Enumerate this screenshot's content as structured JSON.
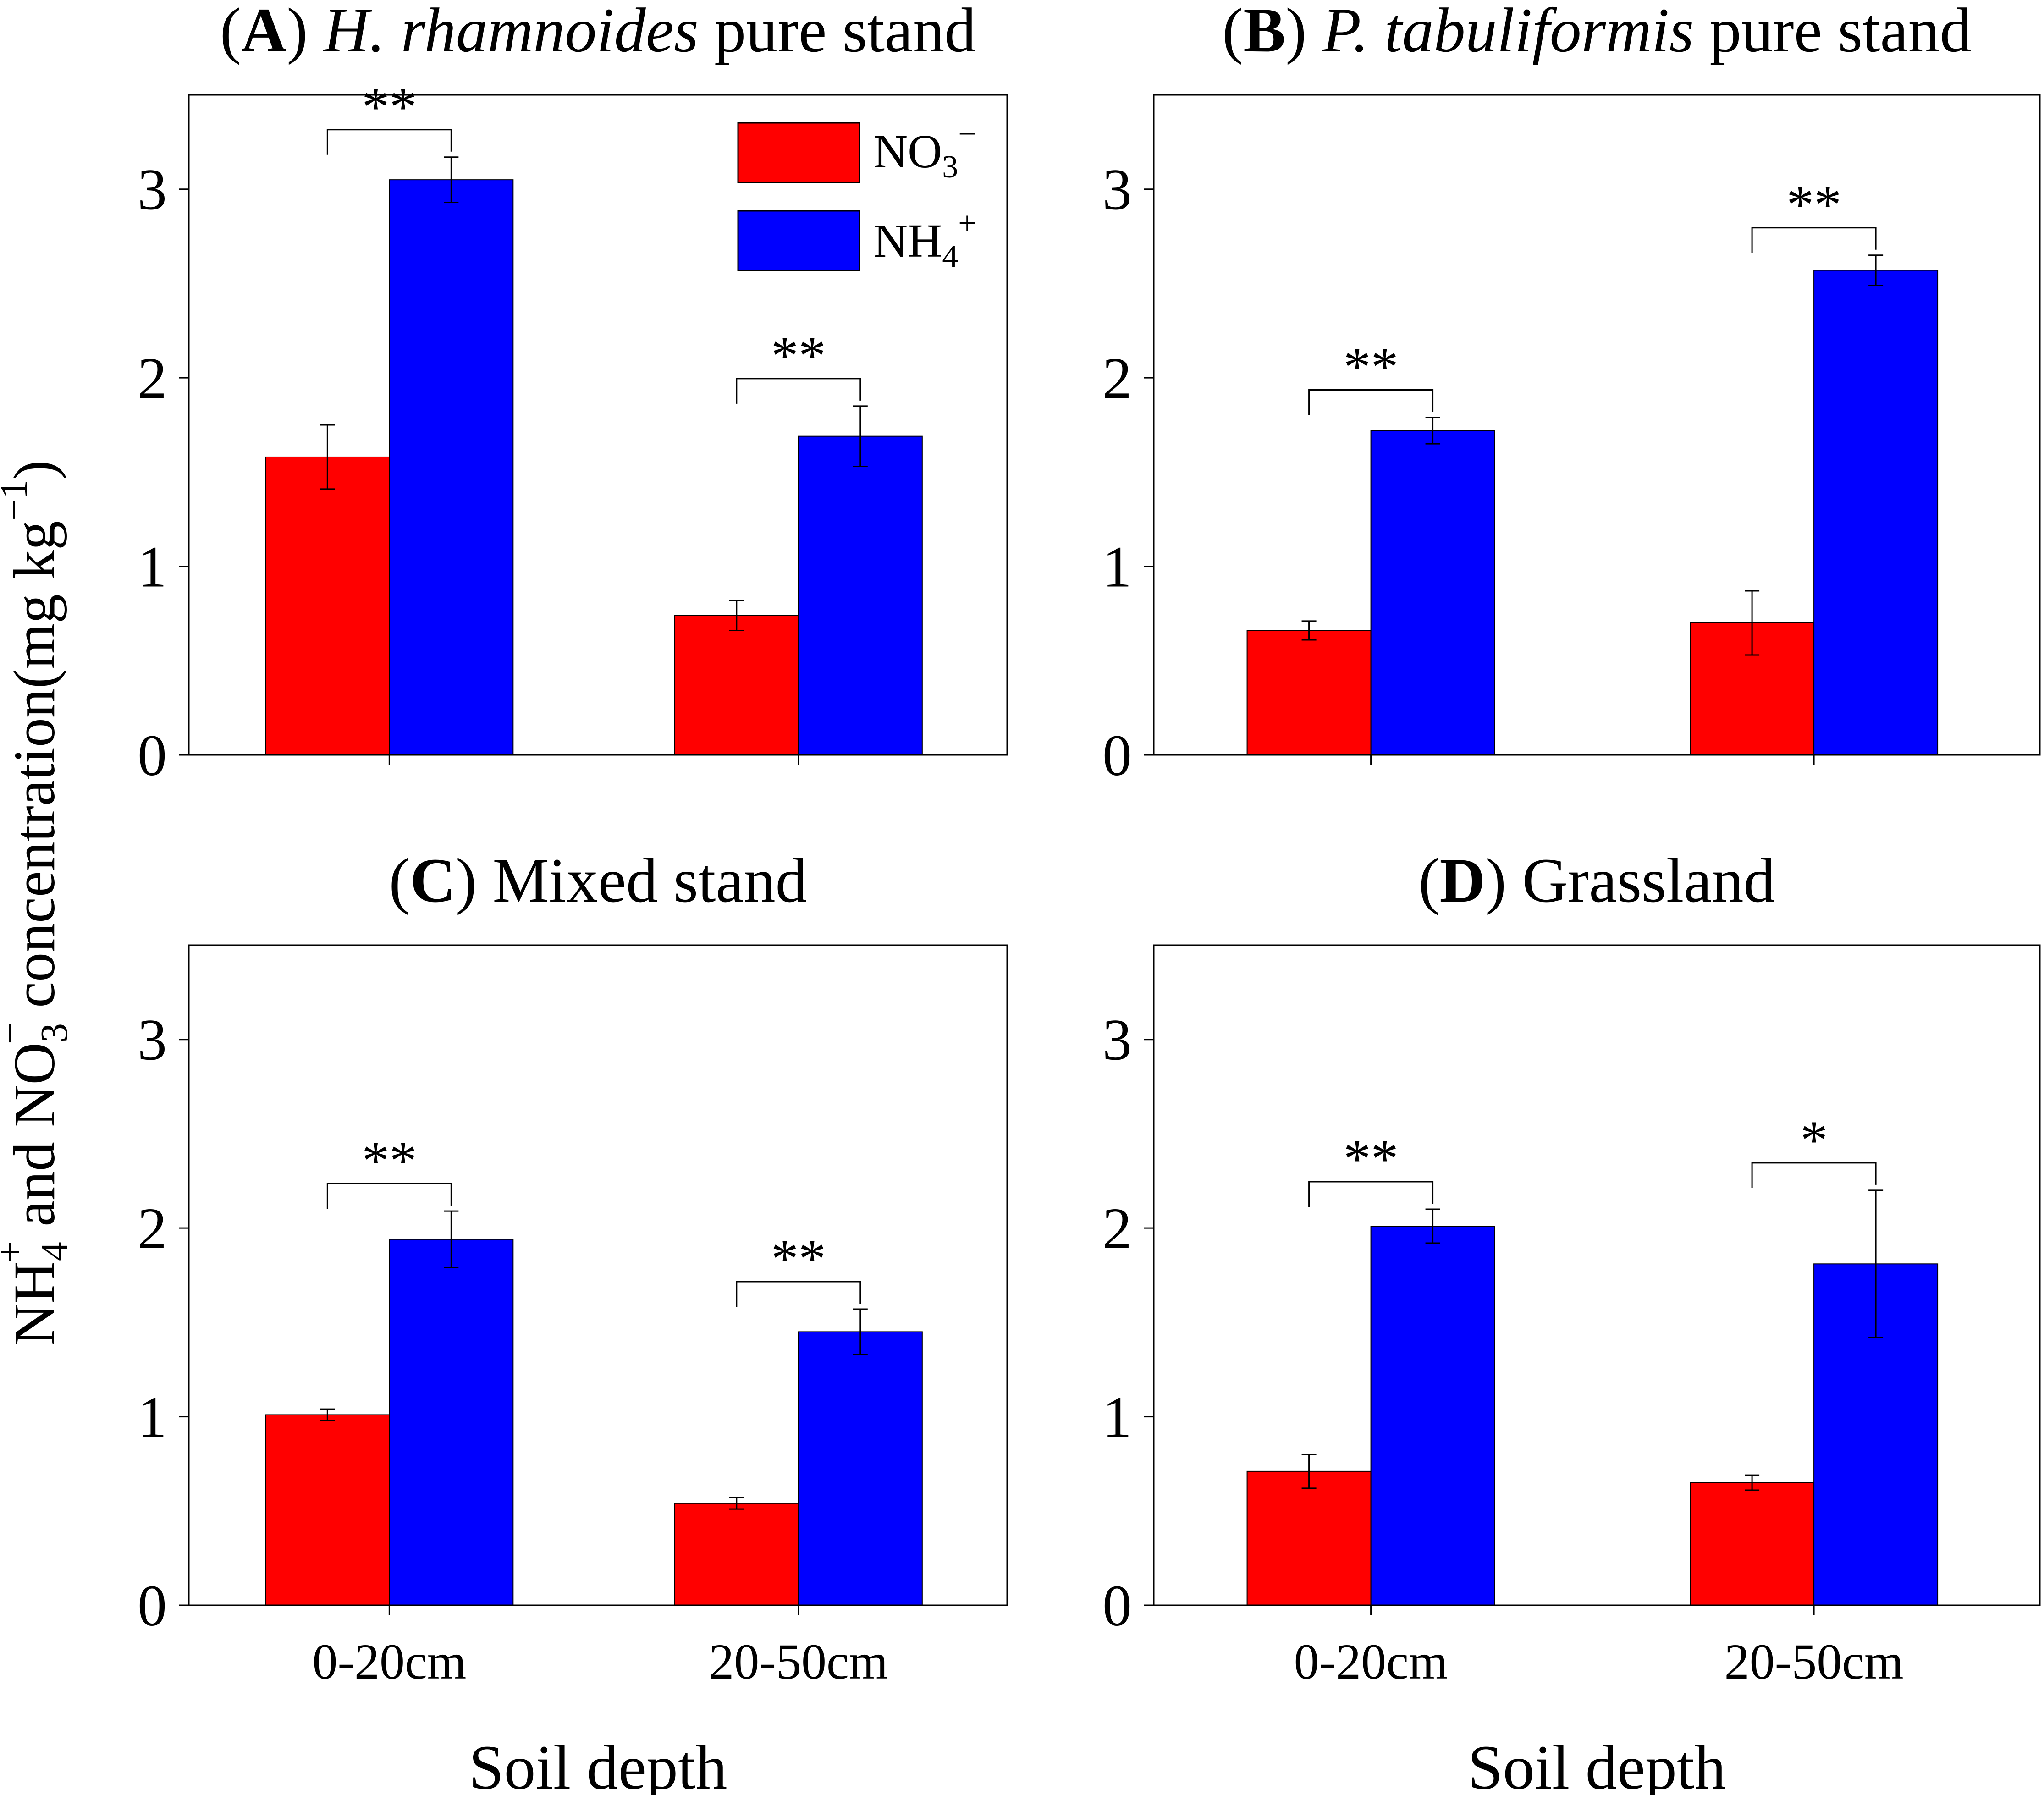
{
  "figure": {
    "y_axis_label": {
      "main1": "NH",
      "sub1": "4",
      "sup1": "+",
      "main2": " and NO",
      "sub2": "3",
      "sup2": "−",
      "main3": " concentration(mg kg",
      "sup3": "−1",
      "main4": ")"
    },
    "legend": {
      "no3": {
        "base": "NO",
        "sub": "3",
        "sup": "−",
        "color": "#ff0000"
      },
      "nh4": {
        "base": "NH",
        "sub": "4",
        "sup": "+",
        "color": "#0000ff"
      }
    },
    "x_axis_label": "Soil depth"
  },
  "chart_data": [
    {
      "type": "bar",
      "panel": "A",
      "title_prefix": "(",
      "title_letter": "A",
      "title_close": ") ",
      "title_italic": "H. rhamnoides",
      "title_rest": " pure stand",
      "categories": [
        "0-20cm",
        "20-50cm"
      ],
      "ylim": [
        0,
        3.5
      ],
      "yticks": [
        "0",
        "1",
        "2",
        "3"
      ],
      "xlabel": "",
      "series": [
        {
          "name": "NO3-",
          "color": "#ff0000",
          "values": [
            1.58,
            0.74
          ],
          "errors": [
            0.17,
            0.08
          ]
        },
        {
          "name": "NH4+",
          "color": "#0000ff",
          "values": [
            3.05,
            1.69
          ],
          "errors": [
            0.12,
            0.16
          ]
        }
      ],
      "significance": [
        "**",
        "**"
      ]
    },
    {
      "type": "bar",
      "panel": "B",
      "title_prefix": "(",
      "title_letter": "B",
      "title_close": ") ",
      "title_italic": "P. tabuliformis",
      "title_rest": " pure stand",
      "categories": [
        "0-20cm",
        "20-50cm"
      ],
      "ylim": [
        0,
        3.5
      ],
      "yticks": [
        "0",
        "1",
        "2",
        "3"
      ],
      "xlabel": "",
      "series": [
        {
          "name": "NO3-",
          "color": "#ff0000",
          "values": [
            0.66,
            0.7
          ],
          "errors": [
            0.05,
            0.17
          ]
        },
        {
          "name": "NH4+",
          "color": "#0000ff",
          "values": [
            1.72,
            2.57
          ],
          "errors": [
            0.07,
            0.08
          ]
        }
      ],
      "significance": [
        "**",
        "**"
      ]
    },
    {
      "type": "bar",
      "panel": "C",
      "title_prefix": "(",
      "title_letter": "C",
      "title_close": ") ",
      "title_italic": "",
      "title_rest": "Mixed stand",
      "categories": [
        "0-20cm",
        "20-50cm"
      ],
      "ylim": [
        0,
        3.5
      ],
      "yticks": [
        "0",
        "1",
        "2",
        "3"
      ],
      "xlabel": "Soil depth",
      "series": [
        {
          "name": "NO3-",
          "color": "#ff0000",
          "values": [
            1.01,
            0.54
          ],
          "errors": [
            0.03,
            0.03
          ]
        },
        {
          "name": "NH4+",
          "color": "#0000ff",
          "values": [
            1.94,
            1.45
          ],
          "errors": [
            0.15,
            0.12
          ]
        }
      ],
      "significance": [
        "**",
        "**"
      ]
    },
    {
      "type": "bar",
      "panel": "D",
      "title_prefix": "(",
      "title_letter": "D",
      "title_close": ") ",
      "title_italic": "",
      "title_rest": "Grassland",
      "categories": [
        "0-20cm",
        "20-50cm"
      ],
      "ylim": [
        0,
        3.5
      ],
      "yticks": [
        "0",
        "1",
        "2",
        "3"
      ],
      "xlabel": "Soil depth",
      "series": [
        {
          "name": "NO3-",
          "color": "#ff0000",
          "values": [
            0.71,
            0.65
          ],
          "errors": [
            0.09,
            0.04
          ]
        },
        {
          "name": "NH4+",
          "color": "#0000ff",
          "values": [
            2.01,
            1.81
          ],
          "errors": [
            0.09,
            0.39
          ]
        }
      ],
      "significance": [
        "**",
        "*"
      ]
    }
  ]
}
